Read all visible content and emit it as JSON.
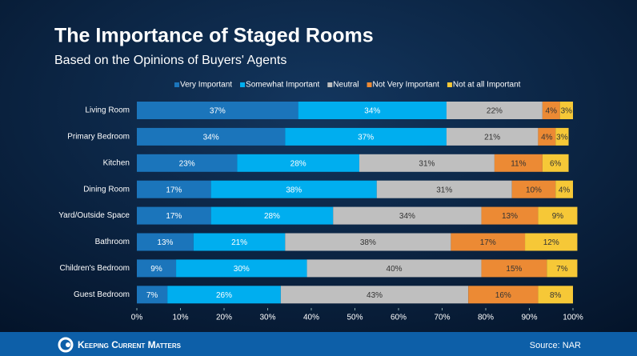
{
  "chart_data": {
    "type": "stacked-barh",
    "title": "The Importance of Staged Rooms",
    "subtitle": "Based on the Opinions of Buyers' Agents",
    "categories": [
      "Living Room",
      "Primary Bedroom",
      "Kitchen",
      "Dining Room",
      "Yard/Outside Space",
      "Bathroom",
      "Children's Bedroom",
      "Guest Bedroom"
    ],
    "series": [
      {
        "name": "Very Important",
        "color": "#1b75bb",
        "values": [
          37,
          34,
          23,
          17,
          17,
          13,
          9,
          7
        ],
        "value_labels": [
          "37%",
          "34%",
          "23%",
          "17%",
          "17%",
          "13%",
          "9%",
          "7%"
        ]
      },
      {
        "name": "Somewhat Important",
        "color": "#00aeef",
        "values": [
          34,
          37,
          28,
          38,
          28,
          21,
          30,
          26
        ],
        "value_labels": [
          "34%",
          "37%",
          "28%",
          "38%",
          "28%",
          "21%",
          "30%",
          "26%"
        ]
      },
      {
        "name": "Neutral",
        "color": "#bfbfbf",
        "values": [
          22,
          21,
          31,
          31,
          34,
          38,
          40,
          43
        ],
        "value_labels": [
          "22%",
          "21%",
          "31%",
          "31%",
          "34%",
          "38%",
          "40%",
          "43%"
        ]
      },
      {
        "name": "Not Very Important",
        "color": "#ec8a34",
        "values": [
          4,
          4,
          11,
          10,
          13,
          17,
          15,
          16
        ],
        "value_labels": [
          "4%",
          "4%",
          "11%",
          "10%",
          "13%",
          "17%",
          "15%",
          "16%"
        ]
      },
      {
        "name": "Not at all Important",
        "color": "#f6c837",
        "values": [
          3,
          3,
          6,
          4,
          9,
          12,
          7,
          8
        ],
        "value_labels": [
          "3%",
          "3%",
          "6%",
          "4%",
          "9%",
          "12%",
          "7%",
          "8%"
        ]
      }
    ],
    "xlim": [
      0,
      100
    ],
    "xticks": [
      {
        "value": 0,
        "label": "0%"
      },
      {
        "value": 10,
        "label": "10%"
      },
      {
        "value": 20,
        "label": "20%"
      },
      {
        "value": 30,
        "label": "30%"
      },
      {
        "value": 40,
        "label": "40%"
      },
      {
        "value": 50,
        "label": "50%"
      },
      {
        "value": 60,
        "label": "60%"
      },
      {
        "value": 70,
        "label": "70%"
      },
      {
        "value": 80,
        "label": "80%"
      },
      {
        "value": 90,
        "label": "90%"
      },
      {
        "value": 100,
        "label": "100%"
      }
    ],
    "legend": "top"
  },
  "footer": {
    "brand": "Keeping Current Matters",
    "source": "Source: NAR"
  }
}
